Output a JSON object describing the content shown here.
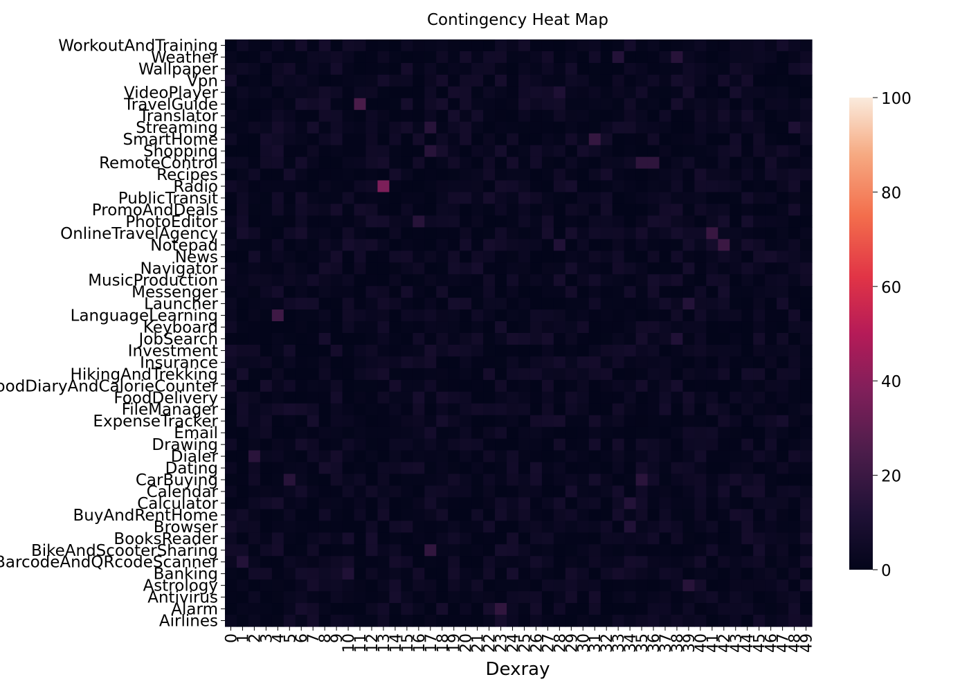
{
  "chart_data": {
    "type": "heatmap",
    "title": "Contingency Heat Map",
    "xlabel": "Dexray",
    "ylabel": "",
    "x_categories": [
      "0",
      "1",
      "2",
      "3",
      "4",
      "5",
      "6",
      "7",
      "8",
      "9",
      "10",
      "11",
      "12",
      "13",
      "14",
      "15",
      "16",
      "17",
      "18",
      "19",
      "20",
      "21",
      "22",
      "23",
      "24",
      "25",
      "26",
      "27",
      "28",
      "29",
      "30",
      "31",
      "32",
      "33",
      "34",
      "35",
      "36",
      "37",
      "38",
      "39",
      "40",
      "41",
      "42",
      "43",
      "44",
      "45",
      "46",
      "47",
      "48",
      "49"
    ],
    "y_categories": [
      "WorkoutAndTraining",
      "Weather",
      "Wallpaper",
      "Vpn",
      "VideoPlayer",
      "TravelGuide",
      "Translator",
      "Streaming",
      "SmartHome",
      "Shopping",
      "RemoteControl",
      "Recipes",
      "Radio",
      "PublicTransit",
      "PromoAndDeals",
      "PhotoEditor",
      "OnlineTravelAgency",
      "Notepad",
      "News",
      "Navigator",
      "MusicProduction",
      "Messenger",
      "Launcher",
      "LanguageLearning",
      "Keyboard",
      "JobSearch",
      "Investment",
      "Insurance",
      "HikingAndTrekking",
      "FoodDiaryAndCalorieCounter",
      "FoodDelivery",
      "FileManager",
      "ExpenseTracker",
      "Email",
      "Drawing",
      "Dialer",
      "Dating",
      "CarBuying",
      "Calendar",
      "Calculator",
      "BuyAndRentHome",
      "Browser",
      "BooksReader",
      "BikeAndScooterSharing",
      "BarcodeAndQRcodeScanner",
      "Banking",
      "Astrology",
      "Antivirus",
      "Alarm",
      "Airlines"
    ],
    "value_range": [
      0,
      100
    ],
    "background_range": [
      0,
      8
    ],
    "colormap": "rocket",
    "colorbar": {
      "ticks": [
        "0",
        "20",
        "40",
        "60",
        "80",
        "100"
      ],
      "position": "right"
    },
    "highlights": [
      {
        "row": "Radio",
        "col": "13",
        "value": 37
      },
      {
        "row": "TravelGuide",
        "col": "11",
        "value": 24
      },
      {
        "row": "SmartHome",
        "col": "31",
        "value": 18
      },
      {
        "row": "LanguageLearning",
        "col": "4",
        "value": 21
      },
      {
        "row": "OnlineTravelAgency",
        "col": "41",
        "value": 19
      },
      {
        "row": "Notepad",
        "col": "42",
        "value": 20
      },
      {
        "row": "RemoteControl",
        "col": "35",
        "value": 16
      },
      {
        "row": "RemoteControl",
        "col": "36",
        "value": 16
      },
      {
        "row": "Alarm",
        "col": "23",
        "value": 17
      },
      {
        "row": "BikeAndScooterSharing",
        "col": "17",
        "value": 17
      },
      {
        "row": "Dialer",
        "col": "2",
        "value": 15
      },
      {
        "row": "CarBuying",
        "col": "5",
        "value": 14
      },
      {
        "row": "CarBuying",
        "col": "35",
        "value": 15
      },
      {
        "row": "PhotoEditor",
        "col": "16",
        "value": 14
      },
      {
        "row": "Streaming",
        "col": "17",
        "value": 14
      },
      {
        "row": "Shopping",
        "col": "17",
        "value": 14
      },
      {
        "row": "BarcodeAndQRcodeScanner",
        "col": "1",
        "value": 13
      },
      {
        "row": "Weather",
        "col": "38",
        "value": 14
      },
      {
        "row": "Weather",
        "col": "33",
        "value": 13
      },
      {
        "row": "Astrology",
        "col": "39",
        "value": 14
      },
      {
        "row": "Launcher",
        "col": "39",
        "value": 13
      },
      {
        "row": "Calculator",
        "col": "34",
        "value": 13
      },
      {
        "row": "Browser",
        "col": "34",
        "value": 12
      },
      {
        "row": "Streaming",
        "col": "48",
        "value": 11
      },
      {
        "row": "Notepad",
        "col": "28",
        "value": 12
      },
      {
        "row": "Banking",
        "col": "10",
        "value": 12
      },
      {
        "row": "VideoPlayer",
        "col": "28",
        "value": 11
      },
      {
        "row": "JobSearch",
        "col": "38",
        "value": 12
      }
    ]
  }
}
